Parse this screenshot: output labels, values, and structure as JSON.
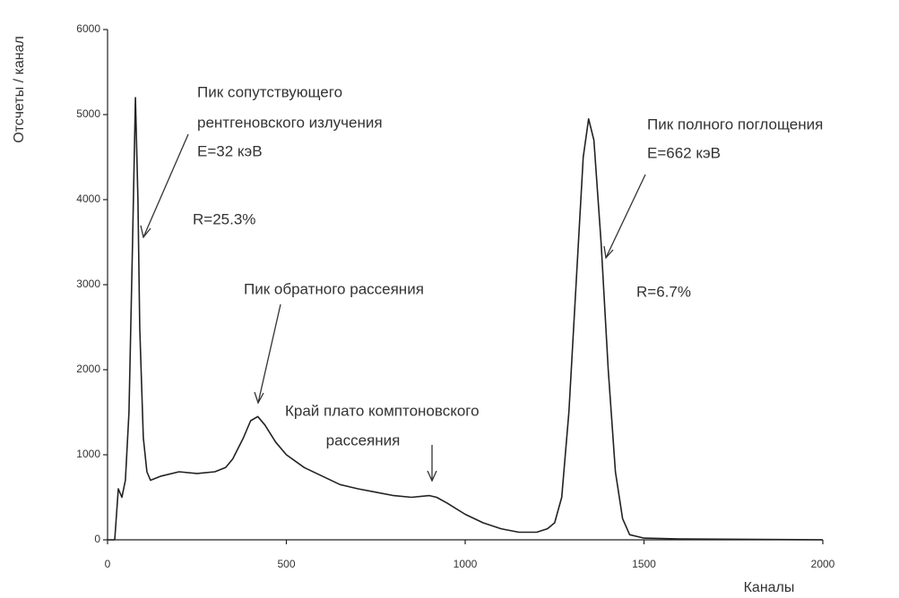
{
  "chart_data": {
    "type": "line",
    "x_label": "Каналы",
    "y_label": "Отсчеты / канал",
    "x": [
      0,
      20,
      30,
      40,
      50,
      60,
      70,
      78,
      85,
      90,
      100,
      110,
      120,
      150,
      200,
      250,
      300,
      330,
      350,
      380,
      400,
      420,
      440,
      470,
      500,
      550,
      600,
      650,
      700,
      750,
      800,
      850,
      900,
      920,
      950,
      1000,
      1050,
      1100,
      1150,
      1200,
      1230,
      1250,
      1270,
      1290,
      1310,
      1330,
      1345,
      1360,
      1380,
      1400,
      1420,
      1440,
      1460,
      1500,
      1600,
      2000
    ],
    "values": [
      0,
      0,
      600,
      500,
      700,
      1500,
      3500,
      5200,
      4000,
      2500,
      1200,
      800,
      700,
      750,
      800,
      780,
      800,
      850,
      950,
      1200,
      1400,
      1450,
      1350,
      1150,
      1000,
      850,
      750,
      650,
      600,
      560,
      520,
      500,
      520,
      500,
      430,
      300,
      200,
      130,
      90,
      90,
      130,
      200,
      500,
      1500,
      3000,
      4500,
      4950,
      4700,
      3500,
      2000,
      800,
      250,
      60,
      20,
      10,
      0
    ],
    "color": "#222222",
    "xlim": [
      0,
      2000
    ],
    "ylim": [
      0,
      6000
    ],
    "xticks": [
      0,
      500,
      1000,
      1500,
      2000
    ],
    "yticks": [
      0,
      1000,
      2000,
      3000,
      4000,
      5000,
      6000
    ],
    "annotations": [
      "Пик сопутствующего",
      "рентгеновского излучения",
      "E=32 кэВ",
      "R=25.3%",
      "Пик обратного рассеяния",
      "Край плато комптоновского",
      "рассеяния",
      "Пик полного поглощения",
      "E=662 кэВ",
      "R=6.7%"
    ]
  }
}
